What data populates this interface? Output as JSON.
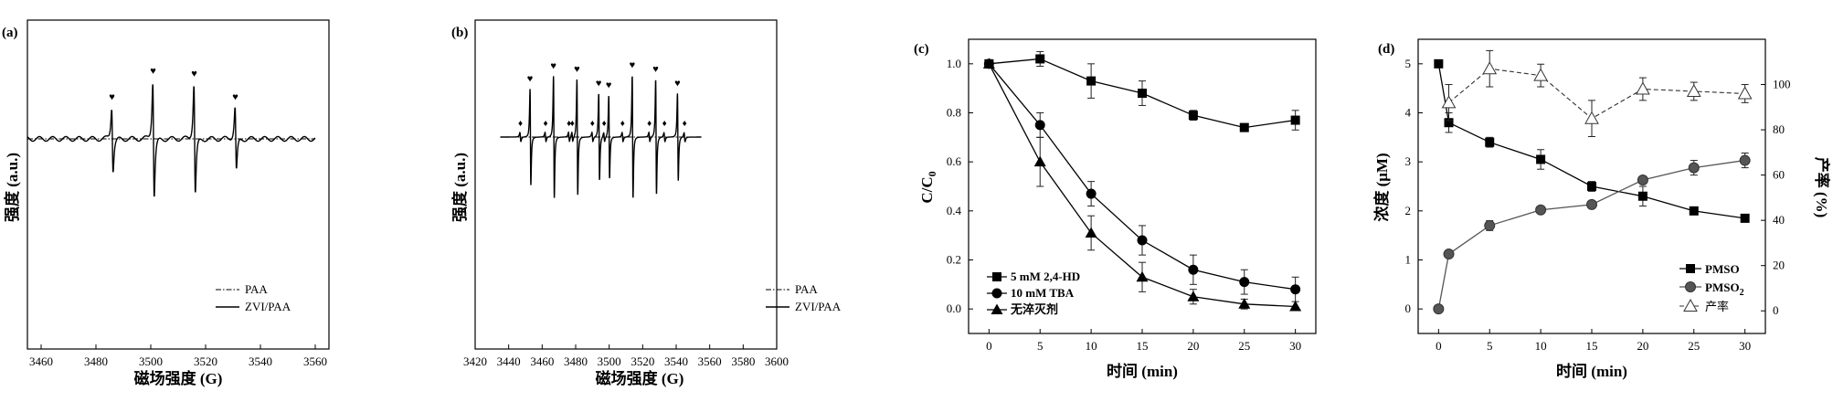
{
  "chart_data": [
    {
      "panel": "(a)",
      "type": "line",
      "xlabel": "磁场强度 (G)",
      "ylabel": "强度 (a.u.)",
      "xlim": [
        3455,
        3565
      ],
      "xticks": [
        3460,
        3480,
        3500,
        3520,
        3540,
        3560
      ],
      "peak_marker": "♥",
      "peaks": [
        3486,
        3501,
        3516,
        3531
      ],
      "peak_heights": [
        0.55,
        1.0,
        0.95,
        0.55
      ],
      "series": [
        {
          "name": "PAA",
          "style": "dashdot",
          "values": "flat baseline"
        },
        {
          "name": "ZVI/PAA",
          "style": "solid"
        }
      ],
      "legend": [
        "PAA",
        "ZVI/PAA"
      ]
    },
    {
      "panel": "(b)",
      "type": "line",
      "xlabel": "磁场强度 (G)",
      "ylabel": "强度 (a.u.)",
      "xlim": [
        3420,
        3600
      ],
      "xticks": [
        3420,
        3440,
        3460,
        3480,
        3500,
        3520,
        3540,
        3560,
        3580,
        3600
      ],
      "heart_marker": "♥",
      "diamond_marker": "♦",
      "heart_peaks": [
        3453,
        3467,
        3481,
        3494,
        3500,
        3514,
        3528,
        3541
      ],
      "heart_heights": [
        0.75,
        0.95,
        0.9,
        0.68,
        0.65,
        0.96,
        0.9,
        0.68
      ],
      "diamond_peaks": [
        3447,
        3462,
        3476,
        3478,
        3490,
        3497,
        3508,
        3524,
        3533,
        3545
      ],
      "series": [
        {
          "name": "PAA",
          "style": "dashdot"
        },
        {
          "name": "ZVI/PAA",
          "style": "solid"
        }
      ],
      "legend": [
        "PAA",
        "ZVI/PAA"
      ]
    },
    {
      "panel": "(c)",
      "type": "line",
      "xlabel": "时间 (min)",
      "ylabel": "C/C0",
      "ylabel_main": "C/C",
      "ylabel_sub": "0",
      "xlim": [
        -2,
        32
      ],
      "ylim": [
        -0.1,
        1.1
      ],
      "xticks": [
        0,
        5,
        10,
        15,
        20,
        25,
        30
      ],
      "yticks": [
        "0.0",
        "0.2",
        "0.4",
        "0.6",
        "0.8",
        "1.0"
      ],
      "x": [
        0,
        5,
        10,
        15,
        20,
        25,
        30
      ],
      "series": [
        {
          "name": "5 mM 2,4-HD",
          "marker": "square",
          "values": [
            1.0,
            1.02,
            0.93,
            0.88,
            0.79,
            0.74,
            0.77
          ],
          "err": [
            0.01,
            0.03,
            0.07,
            0.05,
            0.02,
            0.01,
            0.04
          ]
        },
        {
          "name": "10 mM TBA",
          "marker": "circle",
          "values": [
            1.0,
            0.75,
            0.47,
            0.28,
            0.16,
            0.11,
            0.08
          ],
          "err": [
            0.01,
            0.05,
            0.05,
            0.06,
            0.06,
            0.05,
            0.05
          ]
        },
        {
          "name": "无淬灭剂",
          "marker": "triangle",
          "values": [
            1.0,
            0.6,
            0.31,
            0.13,
            0.05,
            0.02,
            0.01
          ],
          "err": [
            0.01,
            0.1,
            0.07,
            0.06,
            0.03,
            0.02,
            0.01
          ]
        }
      ]
    },
    {
      "panel": "(d)",
      "type": "line",
      "xlabel": "时间 (min)",
      "ylabel": "浓度 (μM)",
      "ylabel_right": "产率 (%)",
      "xlim": [
        -2,
        32
      ],
      "ylim": [
        -0.5,
        5.5
      ],
      "ylim_right": [
        -10,
        120
      ],
      "xticks": [
        0,
        5,
        10,
        15,
        20,
        25,
        30
      ],
      "yticks": [
        0,
        1,
        2,
        3,
        4,
        5
      ],
      "yticks_right": [
        0,
        20,
        40,
        60,
        80,
        100
      ],
      "series": [
        {
          "name": "PMSO",
          "marker": "square",
          "axis": "left",
          "x": [
            0,
            1,
            5,
            10,
            15,
            20,
            25,
            30
          ],
          "values": [
            5.0,
            3.8,
            3.4,
            3.05,
            2.5,
            2.3,
            2.0,
            1.85
          ],
          "err": [
            0,
            0.2,
            0.1,
            0.2,
            0.1,
            0.2,
            0,
            0
          ]
        },
        {
          "name": "PMSO2",
          "label_main": "PMSO",
          "label_sub": "2",
          "marker": "circle",
          "axis": "left",
          "x": [
            0,
            1,
            5,
            10,
            15,
            20,
            25,
            30
          ],
          "values": [
            0,
            1.12,
            1.7,
            2.02,
            2.13,
            2.63,
            2.88,
            3.03
          ],
          "err": [
            0,
            0,
            0.1,
            0,
            0,
            0,
            0.15,
            0.15
          ]
        },
        {
          "name": "产率",
          "marker": "open-triangle",
          "axis": "right",
          "x": [
            1,
            5,
            10,
            15,
            20,
            25,
            30
          ],
          "values": [
            92,
            107,
            104,
            85,
            98,
            97,
            96
          ],
          "err": [
            8,
            8,
            5,
            8,
            5,
            4,
            4
          ]
        }
      ]
    }
  ]
}
